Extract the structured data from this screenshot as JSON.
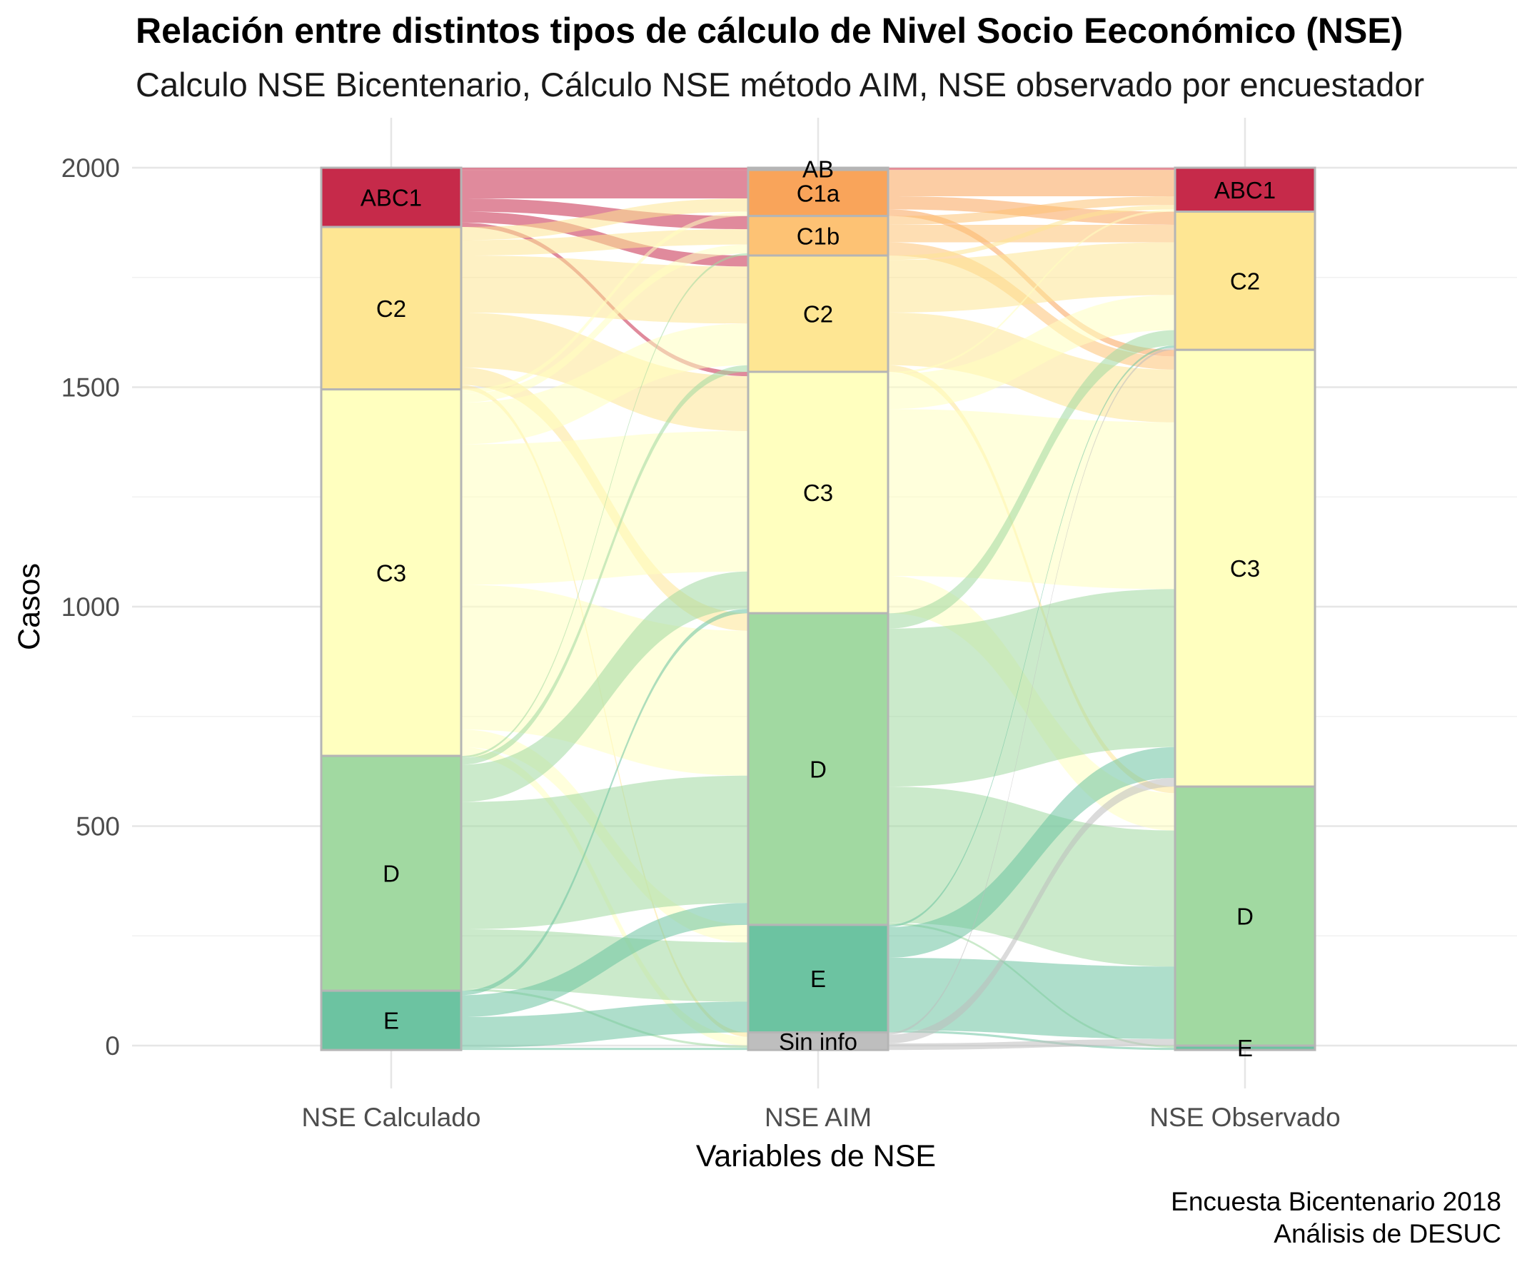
{
  "title": "Relación entre distintos tipos de cálculo de Nivel Socio Eeconómico (NSE)",
  "subtitle": "Calculo NSE Bicentenario, Cálculo NSE método AIM, NSE observado por encuestador",
  "caption_line1": "Encuesta Bicentenario 2018",
  "caption_line2": "Análisis de DESUC",
  "colors": {
    "AB": "#d53e4f",
    "ABC1": "#c62a4a",
    "C1a": "#f9a45a",
    "C1b": "#fdc274",
    "C2": "#fee693",
    "C3": "#ffffbf",
    "D": "#a1d9a1",
    "E": "#6cc3a1",
    "Sin info": "#bebebe"
  },
  "chart_data": {
    "type": "alluvial",
    "title": "Relación entre distintos tipos de cálculo de Nivel Socio Eeconómico (NSE)",
    "xlabel": "Variables de NSE",
    "ylabel": "Casos",
    "ylim": [
      0,
      2000
    ],
    "yticks": [
      0,
      500,
      1000,
      1500,
      2000
    ],
    "axes": [
      {
        "name": "NSE Calculado",
        "strata": [
          {
            "label": "ABC1",
            "value": 135
          },
          {
            "label": "C2",
            "value": 370
          },
          {
            "label": "C3",
            "value": 835
          },
          {
            "label": "D",
            "value": 535
          },
          {
            "label": "E",
            "value": 135
          }
        ]
      },
      {
        "name": "NSE AIM",
        "strata": [
          {
            "label": "AB",
            "value": 5
          },
          {
            "label": "C1a",
            "value": 105
          },
          {
            "label": "C1b",
            "value": 90
          },
          {
            "label": "C2",
            "value": 265
          },
          {
            "label": "C3",
            "value": 550
          },
          {
            "label": "D",
            "value": 710
          },
          {
            "label": "E",
            "value": 245
          },
          {
            "label": "Sin info",
            "value": 40
          }
        ]
      },
      {
        "name": "NSE Observado",
        "strata": [
          {
            "label": "ABC1",
            "value": 100
          },
          {
            "label": "C2",
            "value": 315
          },
          {
            "label": "C3",
            "value": 995
          },
          {
            "label": "D",
            "value": 590
          },
          {
            "label": "E",
            "value": 10
          }
        ]
      }
    ],
    "flows_1_2": [
      {
        "from": "ABC1",
        "to": "AB",
        "value": 5
      },
      {
        "from": "ABC1",
        "to": "C1a",
        "value": 65
      },
      {
        "from": "ABC1",
        "to": "C1b",
        "value": 30
      },
      {
        "from": "ABC1",
        "to": "C2",
        "value": 25
      },
      {
        "from": "ABC1",
        "to": "C3",
        "value": 10
      },
      {
        "from": "C2",
        "to": "C1a",
        "value": 30
      },
      {
        "from": "C2",
        "to": "C1b",
        "value": 35
      },
      {
        "from": "C2",
        "to": "C2",
        "value": 130
      },
      {
        "from": "C2",
        "to": "C3",
        "value": 125
      },
      {
        "from": "C2",
        "to": "D",
        "value": 40
      },
      {
        "from": "C2",
        "to": "Sin info",
        "value": 10
      },
      {
        "from": "C3",
        "to": "C1a",
        "value": 10
      },
      {
        "from": "C3",
        "to": "C1b",
        "value": 20
      },
      {
        "from": "C3",
        "to": "C2",
        "value": 95
      },
      {
        "from": "C3",
        "to": "C3",
        "value": 320
      },
      {
        "from": "C3",
        "to": "D",
        "value": 330
      },
      {
        "from": "C3",
        "to": "E",
        "value": 40
      },
      {
        "from": "C3",
        "to": "Sin info",
        "value": 20
      },
      {
        "from": "D",
        "to": "C1b",
        "value": 5
      },
      {
        "from": "D",
        "to": "C2",
        "value": 15
      },
      {
        "from": "D",
        "to": "C3",
        "value": 85
      },
      {
        "from": "D",
        "to": "D",
        "value": 290
      },
      {
        "from": "D",
        "to": "E",
        "value": 135
      },
      {
        "from": "D",
        "to": "Sin info",
        "value": 5
      },
      {
        "from": "E",
        "to": "C3",
        "value": 10
      },
      {
        "from": "E",
        "to": "D",
        "value": 50
      },
      {
        "from": "E",
        "to": "E",
        "value": 70
      },
      {
        "from": "E",
        "to": "Sin info",
        "value": 5
      }
    ],
    "flows_2_3": [
      {
        "from": "AB",
        "to": "ABC1",
        "value": 5
      },
      {
        "from": "C1a",
        "to": "ABC1",
        "value": 60
      },
      {
        "from": "C1a",
        "to": "C2",
        "value": 30
      },
      {
        "from": "C1a",
        "to": "C3",
        "value": 15
      },
      {
        "from": "C1b",
        "to": "ABC1",
        "value": 20
      },
      {
        "from": "C1b",
        "to": "C2",
        "value": 40
      },
      {
        "from": "C1b",
        "to": "C3",
        "value": 30
      },
      {
        "from": "C2",
        "to": "ABC1",
        "value": 10
      },
      {
        "from": "C2",
        "to": "C2",
        "value": 120
      },
      {
        "from": "C2",
        "to": "C3",
        "value": 120
      },
      {
        "from": "C2",
        "to": "D",
        "value": 15
      },
      {
        "from": "C3",
        "to": "ABC1",
        "value": 5
      },
      {
        "from": "C3",
        "to": "C2",
        "value": 80
      },
      {
        "from": "C3",
        "to": "C3",
        "value": 380
      },
      {
        "from": "C3",
        "to": "D",
        "value": 85
      },
      {
        "from": "D",
        "to": "C2",
        "value": 35
      },
      {
        "from": "D",
        "to": "C3",
        "value": 360
      },
      {
        "from": "D",
        "to": "D",
        "value": 310
      },
      {
        "from": "D",
        "to": "E",
        "value": 5
      },
      {
        "from": "E",
        "to": "C2",
        "value": 5
      },
      {
        "from": "E",
        "to": "C3",
        "value": 70
      },
      {
        "from": "E",
        "to": "D",
        "value": 165
      },
      {
        "from": "E",
        "to": "E",
        "value": 5
      },
      {
        "from": "Sin info",
        "to": "C2",
        "value": 5
      },
      {
        "from": "Sin info",
        "to": "C3",
        "value": 20
      },
      {
        "from": "Sin info",
        "to": "D",
        "value": 15
      }
    ]
  }
}
